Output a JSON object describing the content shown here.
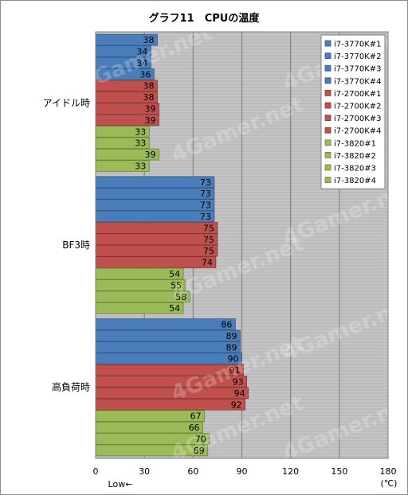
{
  "chart_data": {
    "type": "bar",
    "orientation": "horizontal",
    "title": "グラフ11　CPUの温度",
    "categories": [
      "アイドル時",
      "BF3時",
      "高負荷時"
    ],
    "series": [
      {
        "name": "i7-3770K#1",
        "color": "#4a7ebb",
        "values": [
          38,
          73,
          86
        ]
      },
      {
        "name": "i7-3770K#2",
        "color": "#4a7ebb",
        "values": [
          34,
          73,
          89
        ]
      },
      {
        "name": "i7-3770K#3",
        "color": "#4a7ebb",
        "values": [
          34,
          73,
          89
        ]
      },
      {
        "name": "i7-3770K#4",
        "color": "#4a7ebb",
        "values": [
          36,
          73,
          90
        ]
      },
      {
        "name": "i7-2700K#1",
        "color": "#c0504d",
        "values": [
          38,
          75,
          91
        ]
      },
      {
        "name": "i7-2700K#2",
        "color": "#c0504d",
        "values": [
          38,
          75,
          93
        ]
      },
      {
        "name": "i7-2700K#3",
        "color": "#c0504d",
        "values": [
          39,
          75,
          94
        ]
      },
      {
        "name": "i7-2700K#4",
        "color": "#c0504d",
        "values": [
          39,
          74,
          92
        ]
      },
      {
        "name": "i7-3820#1",
        "color": "#9bbb59",
        "values": [
          33,
          54,
          67
        ]
      },
      {
        "name": "i7-3820#2",
        "color": "#9bbb59",
        "values": [
          33,
          55,
          66
        ]
      },
      {
        "name": "i7-3820#3",
        "color": "#9bbb59",
        "values": [
          39,
          58,
          70
        ]
      },
      {
        "name": "i7-3820#4",
        "color": "#9bbb59",
        "values": [
          33,
          54,
          69
        ]
      }
    ],
    "xlim": [
      0,
      180
    ],
    "xticks": [
      0,
      30,
      60,
      90,
      120,
      150,
      180
    ],
    "unit": "(℃)",
    "low_label": "Low←",
    "legend_position": "top-right",
    "grid": true,
    "plot_background": "#c0c0c0",
    "watermark": "4Gamer.net"
  }
}
